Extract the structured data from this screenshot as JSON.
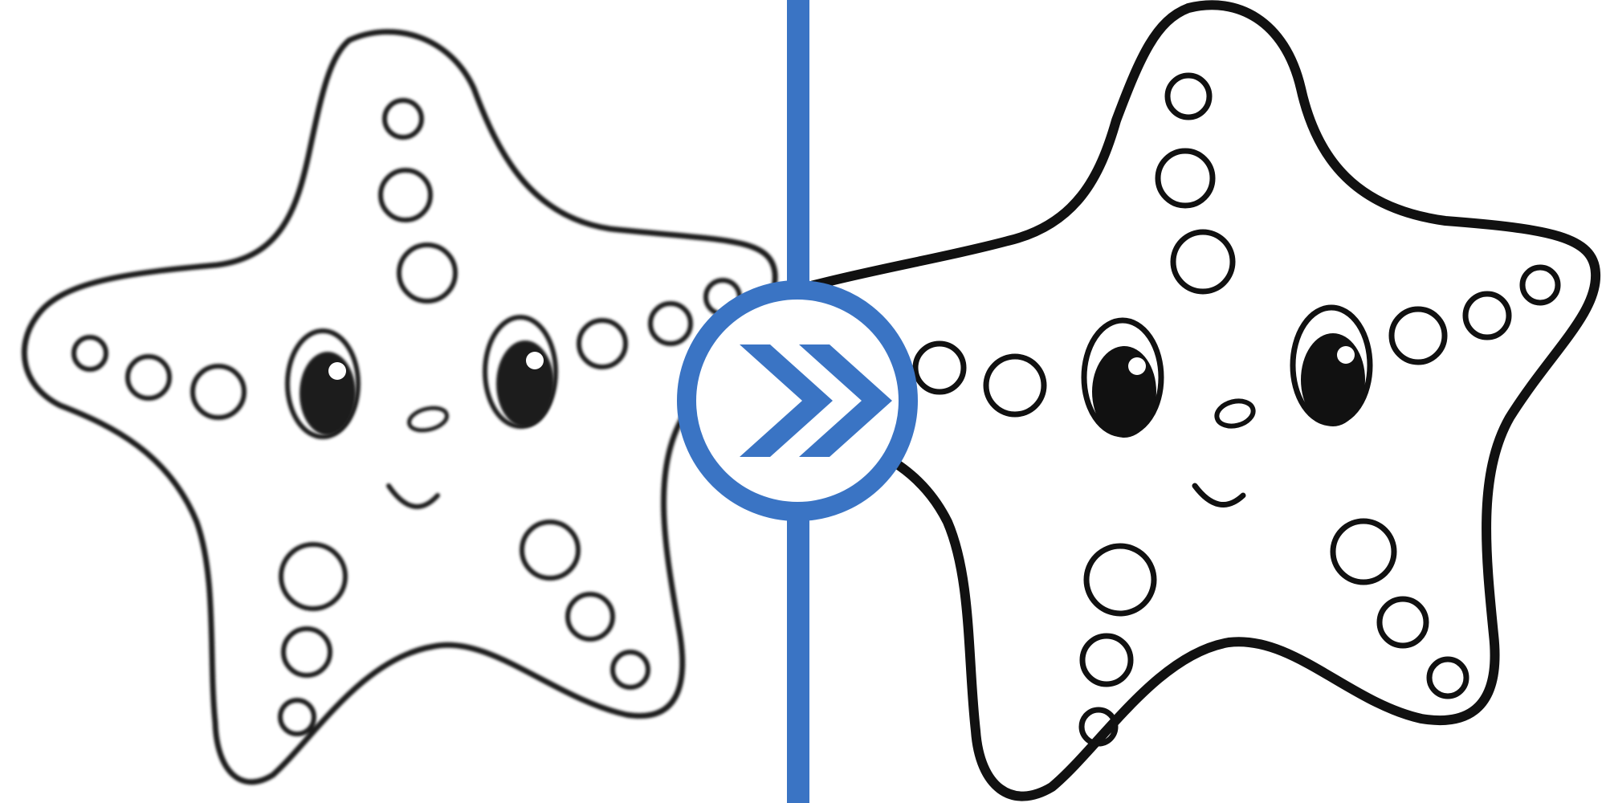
{
  "comparison": {
    "before_label": "",
    "after_label": "",
    "accent_color": "#3a74c4",
    "line_color": "#111111",
    "background_color": "#ffffff",
    "button_icon": "double-chevron-right-icon"
  }
}
